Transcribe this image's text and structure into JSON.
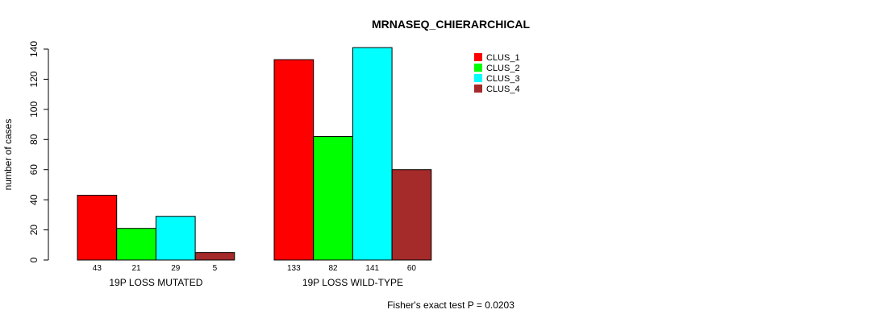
{
  "chart_data": {
    "type": "bar",
    "title": "MRNASEQ_CHIERARCHICAL",
    "ylabel": "number of cases",
    "xlabel": "",
    "ylim": [
      0,
      140
    ],
    "yticks": [
      0,
      20,
      40,
      60,
      80,
      100,
      120,
      140
    ],
    "categories": [
      "19P LOSS MUTATED",
      "19P LOSS WILD-TYPE"
    ],
    "series": [
      {
        "name": "CLUS_1",
        "color": "#ff0000",
        "values": [
          43,
          133
        ]
      },
      {
        "name": "CLUS_2",
        "color": "#00ff00",
        "values": [
          21,
          82
        ]
      },
      {
        "name": "CLUS_3",
        "color": "#00ffff",
        "values": [
          29,
          141
        ]
      },
      {
        "name": "CLUS_4",
        "color": "#a52a2a",
        "values": [
          5,
          60
        ]
      }
    ],
    "legend_position": "top-right",
    "footnote": "Fisher's exact test P = 0.0203"
  }
}
